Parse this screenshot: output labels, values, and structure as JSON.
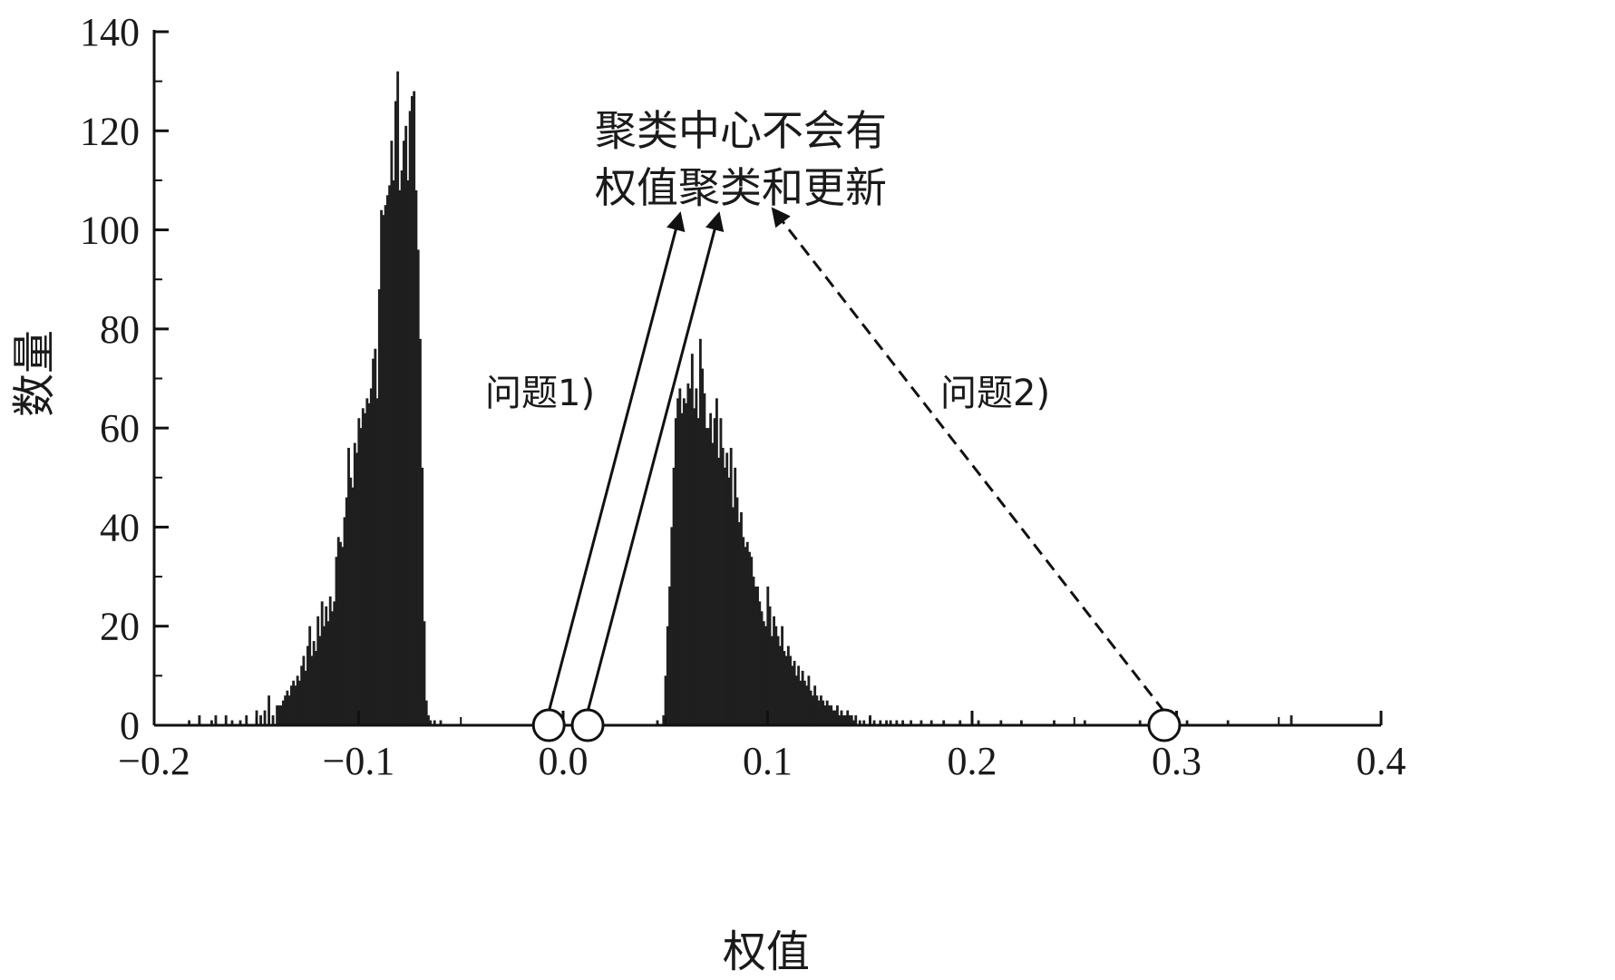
{
  "chart_data": {
    "type": "bar",
    "xlabel": "权值",
    "ylabel": "数量",
    "xlim": [
      -0.2,
      0.4
    ],
    "ylim": [
      0,
      140
    ],
    "xticks": [
      -0.2,
      -0.1,
      0.0,
      0.1,
      0.2,
      0.3,
      0.4
    ],
    "xtick_labels": [
      "−0.2",
      "−0.1",
      "0.0",
      "0.1",
      "0.2",
      "0.3",
      "0.4"
    ],
    "yticks": [
      0,
      20,
      40,
      60,
      80,
      100,
      120,
      140
    ],
    "ytick_labels": [
      "0",
      "20",
      "40",
      "60",
      "80",
      "100",
      "120",
      "140"
    ],
    "grid": false,
    "bin_width": 0.001,
    "bars": [
      {
        "x": -0.183,
        "y": 1
      },
      {
        "x": -0.178,
        "y": 2
      },
      {
        "x": -0.172,
        "y": 1
      },
      {
        "x": -0.17,
        "y": 2
      },
      {
        "x": -0.165,
        "y": 2
      },
      {
        "x": -0.162,
        "y": 1
      },
      {
        "x": -0.158,
        "y": 1
      },
      {
        "x": -0.155,
        "y": 2
      },
      {
        "x": -0.15,
        "y": 3
      },
      {
        "x": -0.148,
        "y": 2
      },
      {
        "x": -0.146,
        "y": 3
      },
      {
        "x": -0.144,
        "y": 6
      },
      {
        "x": -0.142,
        "y": 2
      },
      {
        "x": -0.14,
        "y": 4
      },
      {
        "x": -0.139,
        "y": 4
      },
      {
        "x": -0.138,
        "y": 4
      },
      {
        "x": -0.137,
        "y": 5
      },
      {
        "x": -0.136,
        "y": 6
      },
      {
        "x": -0.135,
        "y": 7
      },
      {
        "x": -0.134,
        "y": 6
      },
      {
        "x": -0.133,
        "y": 8
      },
      {
        "x": -0.132,
        "y": 9
      },
      {
        "x": -0.131,
        "y": 8
      },
      {
        "x": -0.13,
        "y": 10
      },
      {
        "x": -0.129,
        "y": 9
      },
      {
        "x": -0.128,
        "y": 12
      },
      {
        "x": -0.127,
        "y": 14
      },
      {
        "x": -0.126,
        "y": 11
      },
      {
        "x": -0.125,
        "y": 16
      },
      {
        "x": -0.124,
        "y": 20
      },
      {
        "x": -0.123,
        "y": 14
      },
      {
        "x": -0.122,
        "y": 17
      },
      {
        "x": -0.121,
        "y": 15
      },
      {
        "x": -0.12,
        "y": 22
      },
      {
        "x": -0.119,
        "y": 18
      },
      {
        "x": -0.118,
        "y": 25
      },
      {
        "x": -0.117,
        "y": 20
      },
      {
        "x": -0.116,
        "y": 24
      },
      {
        "x": -0.115,
        "y": 21
      },
      {
        "x": -0.114,
        "y": 26
      },
      {
        "x": -0.113,
        "y": 23
      },
      {
        "x": -0.112,
        "y": 25
      },
      {
        "x": -0.111,
        "y": 34
      },
      {
        "x": -0.11,
        "y": 38
      },
      {
        "x": -0.109,
        "y": 37
      },
      {
        "x": -0.108,
        "y": 36
      },
      {
        "x": -0.107,
        "y": 42
      },
      {
        "x": -0.106,
        "y": 46
      },
      {
        "x": -0.105,
        "y": 56
      },
      {
        "x": -0.104,
        "y": 50
      },
      {
        "x": -0.103,
        "y": 48
      },
      {
        "x": -0.102,
        "y": 57
      },
      {
        "x": -0.101,
        "y": 55
      },
      {
        "x": -0.1,
        "y": 62
      },
      {
        "x": -0.099,
        "y": 60
      },
      {
        "x": -0.098,
        "y": 64
      },
      {
        "x": -0.097,
        "y": 63
      },
      {
        "x": -0.096,
        "y": 66
      },
      {
        "x": -0.095,
        "y": 65
      },
      {
        "x": -0.094,
        "y": 68
      },
      {
        "x": -0.093,
        "y": 74
      },
      {
        "x": -0.092,
        "y": 76
      },
      {
        "x": -0.091,
        "y": 66
      },
      {
        "x": -0.09,
        "y": 88
      },
      {
        "x": -0.089,
        "y": 104
      },
      {
        "x": -0.088,
        "y": 103
      },
      {
        "x": -0.087,
        "y": 105
      },
      {
        "x": -0.086,
        "y": 107
      },
      {
        "x": -0.085,
        "y": 109
      },
      {
        "x": -0.084,
        "y": 118
      },
      {
        "x": -0.083,
        "y": 110
      },
      {
        "x": -0.082,
        "y": 126
      },
      {
        "x": -0.081,
        "y": 132
      },
      {
        "x": -0.08,
        "y": 108
      },
      {
        "x": -0.079,
        "y": 112
      },
      {
        "x": -0.078,
        "y": 118
      },
      {
        "x": -0.077,
        "y": 121
      },
      {
        "x": -0.076,
        "y": 110
      },
      {
        "x": -0.075,
        "y": 124
      },
      {
        "x": -0.074,
        "y": 127
      },
      {
        "x": -0.073,
        "y": 128
      },
      {
        "x": -0.072,
        "y": 108
      },
      {
        "x": -0.071,
        "y": 96
      },
      {
        "x": -0.07,
        "y": 78
      },
      {
        "x": -0.069,
        "y": 52
      },
      {
        "x": -0.068,
        "y": 21
      },
      {
        "x": -0.067,
        "y": 5
      },
      {
        "x": -0.066,
        "y": 2
      },
      {
        "x": -0.065,
        "y": 1
      },
      {
        "x": -0.063,
        "y": 1
      },
      {
        "x": -0.06,
        "y": 1
      },
      {
        "x": 0.046,
        "y": 1
      },
      {
        "x": 0.049,
        "y": 2
      },
      {
        "x": 0.05,
        "y": 10
      },
      {
        "x": 0.051,
        "y": 20
      },
      {
        "x": 0.052,
        "y": 28
      },
      {
        "x": 0.053,
        "y": 40
      },
      {
        "x": 0.054,
        "y": 52
      },
      {
        "x": 0.055,
        "y": 62
      },
      {
        "x": 0.056,
        "y": 66
      },
      {
        "x": 0.057,
        "y": 68
      },
      {
        "x": 0.058,
        "y": 63
      },
      {
        "x": 0.059,
        "y": 66
      },
      {
        "x": 0.06,
        "y": 65
      },
      {
        "x": 0.061,
        "y": 69
      },
      {
        "x": 0.062,
        "y": 68
      },
      {
        "x": 0.063,
        "y": 75
      },
      {
        "x": 0.064,
        "y": 64
      },
      {
        "x": 0.065,
        "y": 68
      },
      {
        "x": 0.066,
        "y": 62
      },
      {
        "x": 0.067,
        "y": 78
      },
      {
        "x": 0.068,
        "y": 72
      },
      {
        "x": 0.069,
        "y": 67
      },
      {
        "x": 0.07,
        "y": 60
      },
      {
        "x": 0.071,
        "y": 60
      },
      {
        "x": 0.072,
        "y": 63
      },
      {
        "x": 0.073,
        "y": 57
      },
      {
        "x": 0.074,
        "y": 62
      },
      {
        "x": 0.075,
        "y": 66
      },
      {
        "x": 0.076,
        "y": 54
      },
      {
        "x": 0.077,
        "y": 62
      },
      {
        "x": 0.078,
        "y": 56
      },
      {
        "x": 0.079,
        "y": 52
      },
      {
        "x": 0.08,
        "y": 55
      },
      {
        "x": 0.081,
        "y": 50
      },
      {
        "x": 0.082,
        "y": 56
      },
      {
        "x": 0.083,
        "y": 44
      },
      {
        "x": 0.084,
        "y": 52
      },
      {
        "x": 0.085,
        "y": 46
      },
      {
        "x": 0.086,
        "y": 41
      },
      {
        "x": 0.087,
        "y": 43
      },
      {
        "x": 0.088,
        "y": 38
      },
      {
        "x": 0.089,
        "y": 36
      },
      {
        "x": 0.09,
        "y": 37
      },
      {
        "x": 0.091,
        "y": 35
      },
      {
        "x": 0.092,
        "y": 34
      },
      {
        "x": 0.093,
        "y": 30
      },
      {
        "x": 0.094,
        "y": 28
      },
      {
        "x": 0.095,
        "y": 28
      },
      {
        "x": 0.096,
        "y": 25
      },
      {
        "x": 0.097,
        "y": 23
      },
      {
        "x": 0.098,
        "y": 21
      },
      {
        "x": 0.099,
        "y": 20
      },
      {
        "x": 0.1,
        "y": 28
      },
      {
        "x": 0.101,
        "y": 24
      },
      {
        "x": 0.102,
        "y": 18
      },
      {
        "x": 0.103,
        "y": 22
      },
      {
        "x": 0.104,
        "y": 20
      },
      {
        "x": 0.105,
        "y": 18
      },
      {
        "x": 0.106,
        "y": 16
      },
      {
        "x": 0.107,
        "y": 20
      },
      {
        "x": 0.108,
        "y": 15
      },
      {
        "x": 0.109,
        "y": 14
      },
      {
        "x": 0.11,
        "y": 16
      },
      {
        "x": 0.111,
        "y": 14
      },
      {
        "x": 0.112,
        "y": 12
      },
      {
        "x": 0.113,
        "y": 13
      },
      {
        "x": 0.114,
        "y": 10
      },
      {
        "x": 0.115,
        "y": 12
      },
      {
        "x": 0.116,
        "y": 9
      },
      {
        "x": 0.117,
        "y": 11
      },
      {
        "x": 0.118,
        "y": 9
      },
      {
        "x": 0.119,
        "y": 8
      },
      {
        "x": 0.12,
        "y": 10
      },
      {
        "x": 0.121,
        "y": 7
      },
      {
        "x": 0.122,
        "y": 6
      },
      {
        "x": 0.123,
        "y": 8
      },
      {
        "x": 0.124,
        "y": 6
      },
      {
        "x": 0.125,
        "y": 5
      },
      {
        "x": 0.126,
        "y": 6
      },
      {
        "x": 0.127,
        "y": 5
      },
      {
        "x": 0.128,
        "y": 4
      },
      {
        "x": 0.129,
        "y": 5
      },
      {
        "x": 0.13,
        "y": 4
      },
      {
        "x": 0.131,
        "y": 4
      },
      {
        "x": 0.132,
        "y": 3
      },
      {
        "x": 0.133,
        "y": 3
      },
      {
        "x": 0.134,
        "y": 4
      },
      {
        "x": 0.135,
        "y": 2
      },
      {
        "x": 0.136,
        "y": 3
      },
      {
        "x": 0.137,
        "y": 2
      },
      {
        "x": 0.138,
        "y": 2
      },
      {
        "x": 0.139,
        "y": 3
      },
      {
        "x": 0.14,
        "y": 2
      },
      {
        "x": 0.141,
        "y": 2
      },
      {
        "x": 0.142,
        "y": 1
      },
      {
        "x": 0.143,
        "y": 2
      },
      {
        "x": 0.145,
        "y": 1
      },
      {
        "x": 0.147,
        "y": 1
      },
      {
        "x": 0.15,
        "y": 2
      },
      {
        "x": 0.152,
        "y": 1
      },
      {
        "x": 0.155,
        "y": 1
      },
      {
        "x": 0.158,
        "y": 1
      },
      {
        "x": 0.16,
        "y": 1
      },
      {
        "x": 0.163,
        "y": 1
      },
      {
        "x": 0.166,
        "y": 1
      },
      {
        "x": 0.17,
        "y": 1
      },
      {
        "x": 0.175,
        "y": 1
      },
      {
        "x": 0.18,
        "y": 1
      },
      {
        "x": 0.186,
        "y": 1
      },
      {
        "x": 0.194,
        "y": 1
      },
      {
        "x": 0.203,
        "y": 1
      },
      {
        "x": 0.214,
        "y": 1
      },
      {
        "x": 0.224,
        "y": 1
      },
      {
        "x": 0.24,
        "y": 1
      },
      {
        "x": 0.255,
        "y": 1
      },
      {
        "x": 0.282,
        "y": 1
      },
      {
        "x": 0.305,
        "y": 1
      },
      {
        "x": 0.325,
        "y": 1
      },
      {
        "x": 0.356,
        "y": 2
      }
    ],
    "markers": [
      {
        "x": -0.007,
        "y": 0
      },
      {
        "x": 0.012,
        "y": 0
      },
      {
        "x": 0.294,
        "y": 0
      }
    ],
    "arrows": [
      {
        "from": [
          -0.007,
          0
        ],
        "to": [
          0.057,
          103
        ],
        "style": "solid"
      },
      {
        "from": [
          0.012,
          0
        ],
        "to": [
          0.076,
          103
        ],
        "style": "solid"
      },
      {
        "from": [
          0.294,
          0
        ],
        "to": [
          0.103,
          104
        ],
        "style": "dashed"
      }
    ],
    "annotations": {
      "title_line1": {
        "text": "聚类中心不会有"
      },
      "title_line2": {
        "text": "权值聚类和更新"
      },
      "issue1": {
        "text": "问题1)"
      },
      "issue2": {
        "text": "问题2)"
      }
    }
  }
}
